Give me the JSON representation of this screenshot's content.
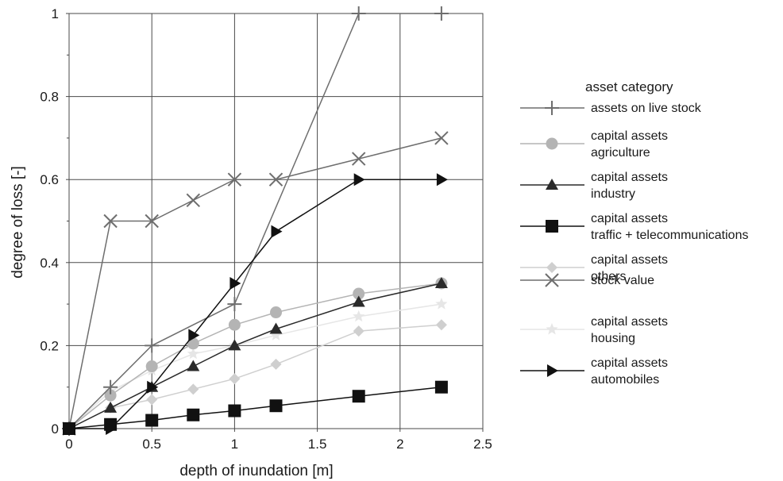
{
  "chart_data": {
    "type": "line",
    "xlabel": "depth of inundation [m]",
    "ylabel": "degree of loss  [-]",
    "xlim": [
      0,
      2.5
    ],
    "ylim": [
      0,
      1
    ],
    "xticks": [
      "0",
      "0.5",
      "1",
      "1.5",
      "2",
      "2.5"
    ],
    "yticks": [
      "0",
      "0.2",
      "0.4",
      "0.6",
      "0.8",
      "1"
    ],
    "grid": true,
    "legend_title": "asset category",
    "legend_position": "right",
    "series": [
      {
        "name": [
          "assets on live stock"
        ],
        "color": "#6e6e6e",
        "marker": "plus",
        "x": [
          0,
          0.25,
          0.5,
          1,
          1.75,
          2.25
        ],
        "y": [
          0,
          0.1,
          0.2,
          0.3,
          1.0,
          1.0
        ]
      },
      {
        "name": [
          "capital assets",
          "agriculture"
        ],
        "color": "#b4b4b4",
        "marker": "circle",
        "x": [
          0,
          0.25,
          0.5,
          0.75,
          1,
          1.25,
          1.75,
          2.25
        ],
        "y": [
          0,
          0.08,
          0.15,
          0.205,
          0.25,
          0.28,
          0.325,
          0.35
        ]
      },
      {
        "name": [
          "capital assets",
          "industry"
        ],
        "color": "#2a2a2a",
        "marker": "triangle",
        "x": [
          0,
          0.25,
          0.5,
          0.75,
          1,
          1.25,
          1.75,
          2.25
        ],
        "y": [
          0,
          0.05,
          0.1,
          0.15,
          0.2,
          0.24,
          0.305,
          0.35
        ]
      },
      {
        "name": [
          "capital assets",
          "traffic + telecommunications"
        ],
        "color": "#111111",
        "marker": "square",
        "x": [
          0,
          0.25,
          0.5,
          0.75,
          1,
          1.25,
          1.75,
          2.25
        ],
        "y": [
          0,
          0.01,
          0.02,
          0.033,
          0.043,
          0.055,
          0.078,
          0.1
        ]
      },
      {
        "name": [
          "capital assets",
          "others"
        ],
        "color": "#cfcfcf",
        "marker": "diamond",
        "x": [
          0,
          0.25,
          0.5,
          0.75,
          1,
          1.25,
          1.75,
          2.25
        ],
        "y": [
          0,
          0.05,
          0.07,
          0.095,
          0.12,
          0.155,
          0.235,
          0.25
        ]
      },
      {
        "name": [
          "stock value"
        ],
        "color": "#6e6e6e",
        "marker": "x",
        "x": [
          0,
          0.25,
          0.5,
          0.75,
          1,
          1.25,
          1.75,
          2.25
        ],
        "y": [
          0,
          0.5,
          0.5,
          0.55,
          0.6,
          0.6,
          0.65,
          0.7
        ]
      },
      {
        "name": [
          "capital assets",
          "housing"
        ],
        "color": "#e6e6e6",
        "marker": "star",
        "x": [
          0,
          0.25,
          0.5,
          0.75,
          1,
          1.25,
          1.75,
          2.25
        ],
        "y": [
          0,
          0.09,
          0.14,
          0.18,
          0.2,
          0.225,
          0.27,
          0.3
        ]
      },
      {
        "name": [
          "capital assets",
          "automobiles"
        ],
        "color": "#111111",
        "marker": "triangle-right",
        "x": [
          0,
          0.25,
          0.5,
          0.75,
          1,
          1.25,
          1.75,
          2.25
        ],
        "y": [
          0,
          0,
          0.1,
          0.225,
          0.35,
          0.475,
          0.6,
          0.6
        ]
      }
    ]
  }
}
